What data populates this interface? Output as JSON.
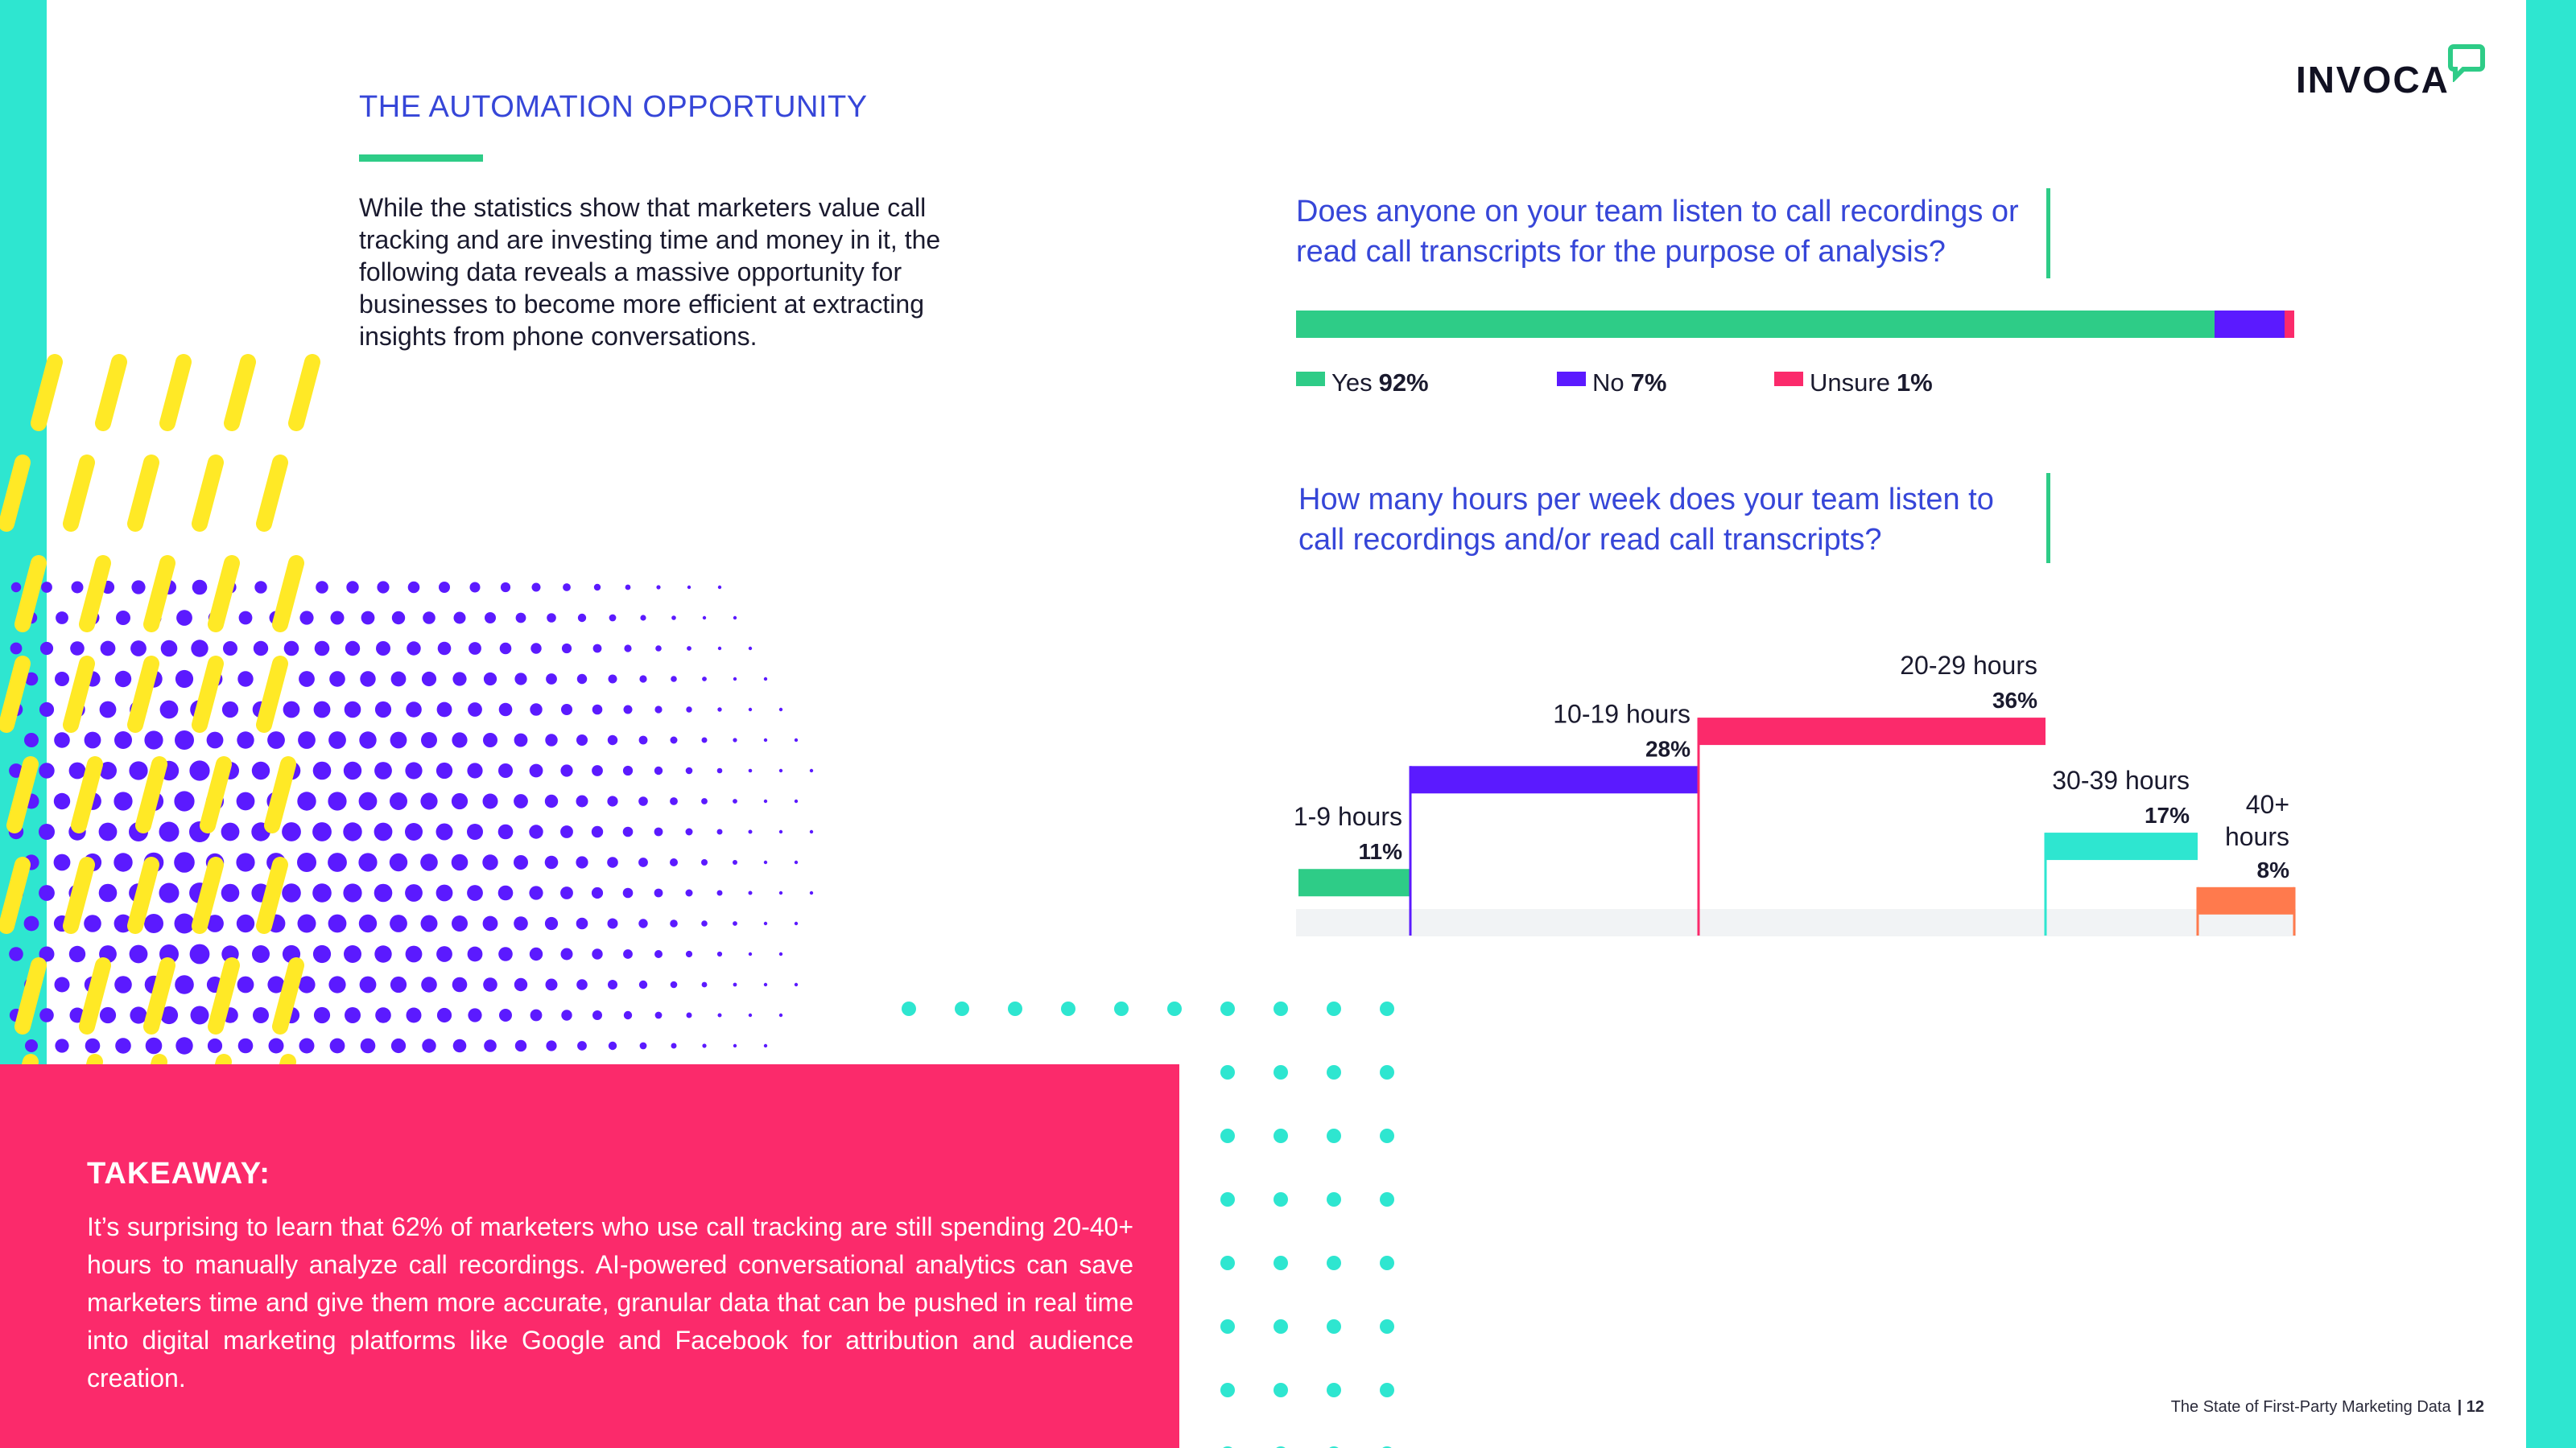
{
  "brand": {
    "logo_text": "INVOCA",
    "accent": "#2ecc87",
    "teal": "#2ee6d0",
    "pink": "#fb2a6b",
    "purple": "#5b1aff",
    "yellow": "#ffe926",
    "heading_blue": "#3646d8"
  },
  "section": {
    "title": "THE AUTOMATION OPPORTUNITY",
    "intro": "While the statistics show that marketers value call tracking and are investing time and money in it, the following data reveals a massive opportunity for businesses to become more efficient at extracting insights from phone conversations."
  },
  "chart_data": [
    {
      "type": "bar",
      "orientation": "stacked-horizontal",
      "title": "Does anyone on your team listen to call recordings or read call transcripts for the purpose of analysis?",
      "series": [
        {
          "name": "Yes",
          "value": 92,
          "value_label": "92%",
          "color": "#2ecc87"
        },
        {
          "name": "No",
          "value": 7,
          "value_label": "7%",
          "color": "#5b1aff"
        },
        {
          "name": "Unsure",
          "value": 1,
          "value_label": "1%",
          "color": "#fb2a6b"
        }
      ],
      "legend_position": "bottom"
    },
    {
      "type": "bar",
      "orientation": "variable-width-steps",
      "title": "How many hours per week does your team listen to call recordings and/or read call transcripts?",
      "categories": [
        "1-9 hours",
        "10-19 hours",
        "20-29 hours",
        "30-39 hours",
        "40+ hours"
      ],
      "values": [
        11,
        28,
        36,
        17,
        8
      ],
      "value_labels": [
        "11%",
        "28%",
        "36%",
        "17%",
        "8%"
      ],
      "colors": [
        "#2ecc87",
        "#5b1aff",
        "#fb2a6b",
        "#2ee6d0",
        "#ff7a4d"
      ],
      "ylim": [
        0,
        40
      ]
    }
  ],
  "takeaway": {
    "title": "TAKEAWAY:",
    "body": "It’s surprising to learn that 62% of marketers who use call tracking are still spending 20-40+ hours to manually analyze call recordings. AI-powered conversational analytics can save marketers time and give them more accurate, granular data that can be pushed in real time into digital marketing platforms like Google and Facebook for attribution and audience creation."
  },
  "footer": {
    "text": "The State of First-Party Marketing Data",
    "page": "| 12"
  }
}
